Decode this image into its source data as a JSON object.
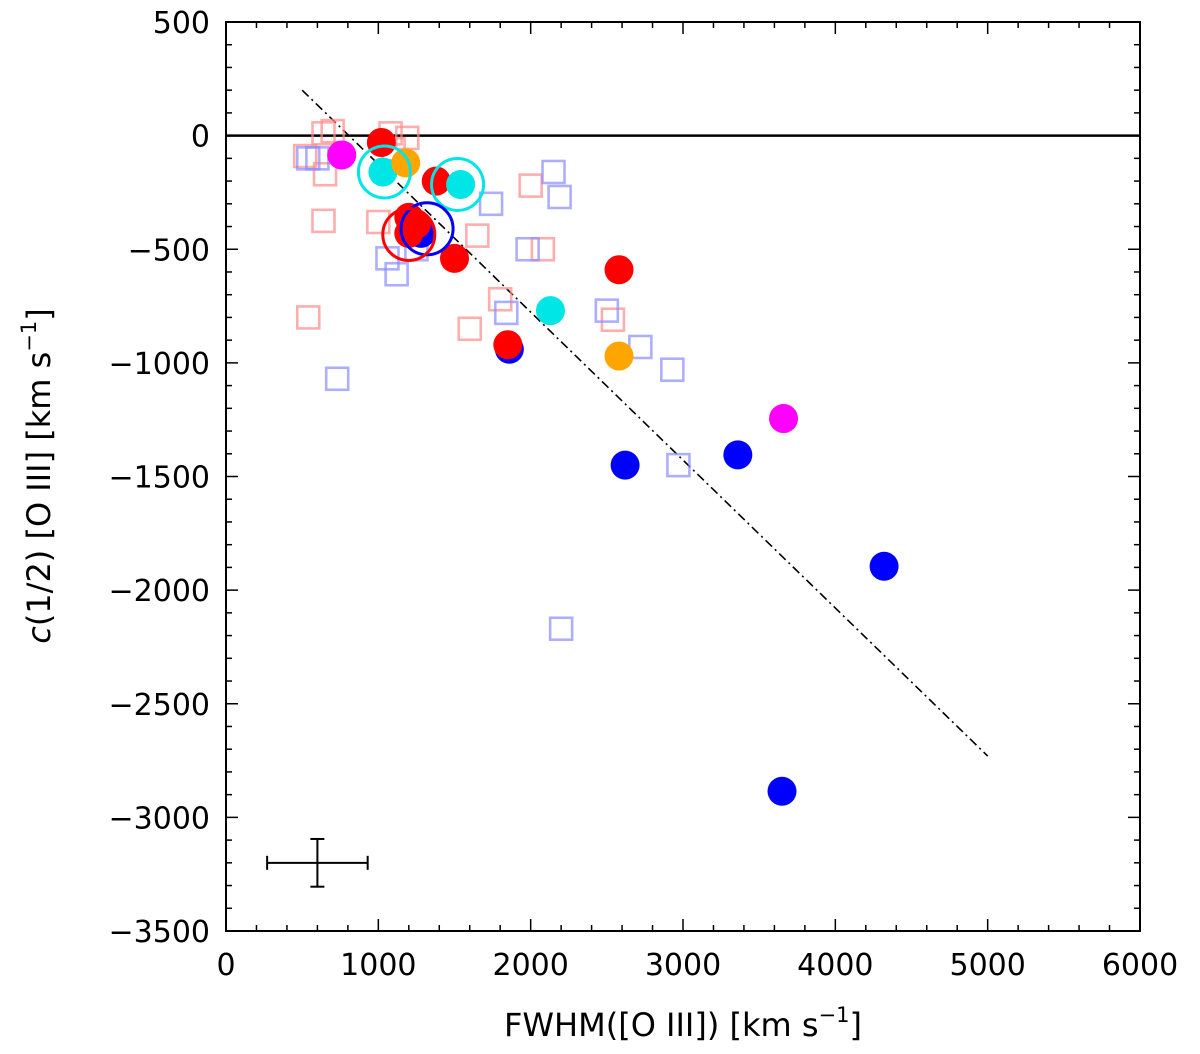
{
  "chart_data": {
    "type": "scatter",
    "xlabel": "FWHM([O III]) [km s",
    "xlabel_sup": "−1",
    "xlabel_suffix": "]",
    "ylabel_italic": "c",
    "ylabel": "(1/2) [O III] [km s",
    "ylabel_sup": "−1",
    "ylabel_suffix": "]",
    "xlim": [
      0,
      6000
    ],
    "ylim": [
      -3500,
      500
    ],
    "x_ticks": [
      0,
      1000,
      2000,
      3000,
      4000,
      5000,
      6000
    ],
    "x_tick_labels": [
      "0",
      "1000",
      "2000",
      "3000",
      "4000",
      "5000",
      "6000"
    ],
    "y_ticks": [
      500,
      0,
      -500,
      -1000,
      -1500,
      -2000,
      -2500,
      -3000,
      -3500
    ],
    "y_tick_labels": [
      "500",
      "0",
      "−500",
      "−1000",
      "−1500",
      "−2000",
      "−2500",
      "−3000",
      "−3500"
    ],
    "grid": false,
    "reference_line_y": 0,
    "fit_line": {
      "style": "dash-dot",
      "x": [
        500,
        5000
      ],
      "y": [
        200,
        -2730
      ]
    },
    "error_bar": {
      "x": 600,
      "y": -3200,
      "xerr": 330,
      "yerr": 105
    },
    "series": [
      {
        "marker": "open-square",
        "color": "#ff8c8c",
        "opacity": 0.7,
        "points": [
          [
            520,
            -90
          ],
          [
            640,
            10
          ],
          [
            700,
            20
          ],
          [
            650,
            -170
          ],
          [
            640,
            -375
          ],
          [
            540,
            -800
          ],
          [
            1000,
            -380
          ],
          [
            1080,
            10
          ],
          [
            1100,
            -60
          ],
          [
            1190,
            -10
          ],
          [
            1650,
            -440
          ],
          [
            1600,
            -850
          ],
          [
            1800,
            -720
          ],
          [
            2000,
            -220
          ],
          [
            2080,
            -500
          ],
          [
            2540,
            -810
          ]
        ]
      },
      {
        "marker": "open-square",
        "color": "#8c8cff",
        "opacity": 0.7,
        "points": [
          [
            540,
            -100
          ],
          [
            600,
            -100
          ],
          [
            730,
            -1070
          ],
          [
            1060,
            -540
          ],
          [
            1120,
            -610
          ],
          [
            1250,
            -500
          ],
          [
            1740,
            -300
          ],
          [
            1840,
            -780
          ],
          [
            1980,
            -500
          ],
          [
            2150,
            -160
          ],
          [
            2190,
            -270
          ],
          [
            2500,
            -770
          ],
          [
            2720,
            -930
          ],
          [
            2930,
            -1030
          ],
          [
            2970,
            -1450
          ],
          [
            2200,
            -2170
          ]
        ]
      },
      {
        "marker": "filled-circle",
        "color": "#0000ff",
        "points": [
          [
            1280,
            -430
          ],
          [
            1860,
            -940
          ],
          [
            2620,
            -1450
          ],
          [
            3360,
            -1405
          ],
          [
            4320,
            -1895
          ],
          [
            3650,
            -2885
          ]
        ]
      },
      {
        "marker": "filled-circle",
        "color": "#ff0000",
        "points": [
          [
            1020,
            -30
          ],
          [
            1380,
            -200
          ],
          [
            1200,
            -360
          ],
          [
            1250,
            -390
          ],
          [
            1200,
            -430
          ],
          [
            1500,
            -540
          ],
          [
            1850,
            -920
          ],
          [
            2580,
            -590
          ]
        ]
      },
      {
        "marker": "filled-circle",
        "color": "#00e5e5",
        "points": [
          [
            1030,
            -160
          ],
          [
            1540,
            -215
          ],
          [
            2130,
            -770
          ]
        ]
      },
      {
        "marker": "filled-circle",
        "color": "#ffa500",
        "points": [
          [
            1180,
            -120
          ],
          [
            2580,
            -970
          ]
        ]
      },
      {
        "marker": "filled-circle",
        "color": "#ff00ff",
        "points": [
          [
            760,
            -85
          ],
          [
            3660,
            -1245
          ]
        ]
      },
      {
        "marker": "open-circle",
        "color": "#00e5e5",
        "points": [
          [
            1040,
            -160
          ],
          [
            1520,
            -215
          ]
        ]
      },
      {
        "marker": "open-circle",
        "color": "#0000ff",
        "points": [
          [
            1320,
            -410
          ]
        ]
      },
      {
        "marker": "open-circle",
        "color": "#ff0000",
        "points": [
          [
            1200,
            -435
          ]
        ]
      }
    ]
  }
}
